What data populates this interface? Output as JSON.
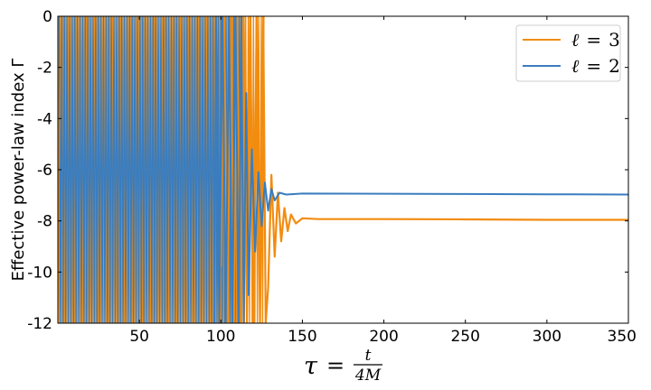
{
  "chart_data": {
    "type": "line",
    "title": "",
    "xlabel": "τ = t/4M",
    "xlabel_parts": {
      "lhs": "τ",
      "eq": "=",
      "num": "t",
      "den": "4M"
    },
    "ylabel": "Effective power-law index Γ",
    "xlim": [
      0,
      350
    ],
    "ylim": [
      -12,
      0
    ],
    "x_ticks": [
      50,
      100,
      150,
      200,
      250,
      300,
      350
    ],
    "x_tick_labels": [
      "50",
      "100",
      "150",
      "200",
      "250",
      "300",
      "350"
    ],
    "y_ticks": [
      0,
      -2,
      -4,
      -6,
      -8,
      -10,
      -12
    ],
    "y_tick_labels": [
      "0",
      "-2",
      "-4",
      "-6",
      "-8",
      "-10",
      "-12"
    ],
    "grid": false,
    "legend_position": "top-right",
    "series": [
      {
        "name": "ℓ = 3",
        "legend_lhs": "ℓ",
        "legend_rhs": "3",
        "color": "#f28c0f",
        "asymptote": -7.95,
        "oscillation_end": 127,
        "points": [
          [
            100,
            -9.8
          ],
          [
            102,
            0
          ],
          [
            104,
            -12
          ],
          [
            106,
            0
          ],
          [
            108,
            -12
          ],
          [
            110,
            0
          ],
          [
            112,
            -12
          ],
          [
            114,
            0
          ],
          [
            116,
            -12
          ],
          [
            118,
            0
          ],
          [
            120,
            -12
          ],
          [
            122,
            0
          ],
          [
            124,
            -12
          ],
          [
            126,
            0
          ],
          [
            127.5,
            -12
          ],
          [
            129,
            -10.6
          ],
          [
            131,
            -6.2
          ],
          [
            133,
            -9.4
          ],
          [
            135,
            -6.9
          ],
          [
            137,
            -8.8
          ],
          [
            139,
            -7.5
          ],
          [
            141,
            -8.4
          ],
          [
            143,
            -7.75
          ],
          [
            146,
            -8.1
          ],
          [
            150,
            -7.9
          ],
          [
            160,
            -7.93
          ],
          [
            200,
            -7.93
          ],
          [
            250,
            -7.94
          ],
          [
            300,
            -7.96
          ],
          [
            350,
            -7.96
          ]
        ]
      },
      {
        "name": "ℓ = 2",
        "legend_lhs": "ℓ",
        "legend_rhs": "2",
        "color": "#3a7dbf",
        "asymptote": -6.95,
        "oscillation_end": 113,
        "points": [
          [
            96,
            -12
          ],
          [
            97,
            0
          ],
          [
            99,
            -12
          ],
          [
            101,
            0
          ],
          [
            103,
            -12
          ],
          [
            105,
            0
          ],
          [
            107,
            -12
          ],
          [
            109,
            0
          ],
          [
            111,
            -12
          ],
          [
            112.5,
            0
          ],
          [
            114,
            -12
          ],
          [
            115.5,
            -3.0
          ],
          [
            117,
            -10.9
          ],
          [
            119,
            -5.2
          ],
          [
            121,
            -9.2
          ],
          [
            123,
            -6.1
          ],
          [
            125,
            -8.2
          ],
          [
            127,
            -6.5
          ],
          [
            129,
            -7.6
          ],
          [
            131,
            -6.75
          ],
          [
            133,
            -7.2
          ],
          [
            136,
            -6.9
          ],
          [
            140,
            -6.97
          ],
          [
            150,
            -6.93
          ],
          [
            200,
            -6.94
          ],
          [
            250,
            -6.95
          ],
          [
            300,
            -6.96
          ],
          [
            350,
            -6.97
          ]
        ]
      }
    ]
  }
}
